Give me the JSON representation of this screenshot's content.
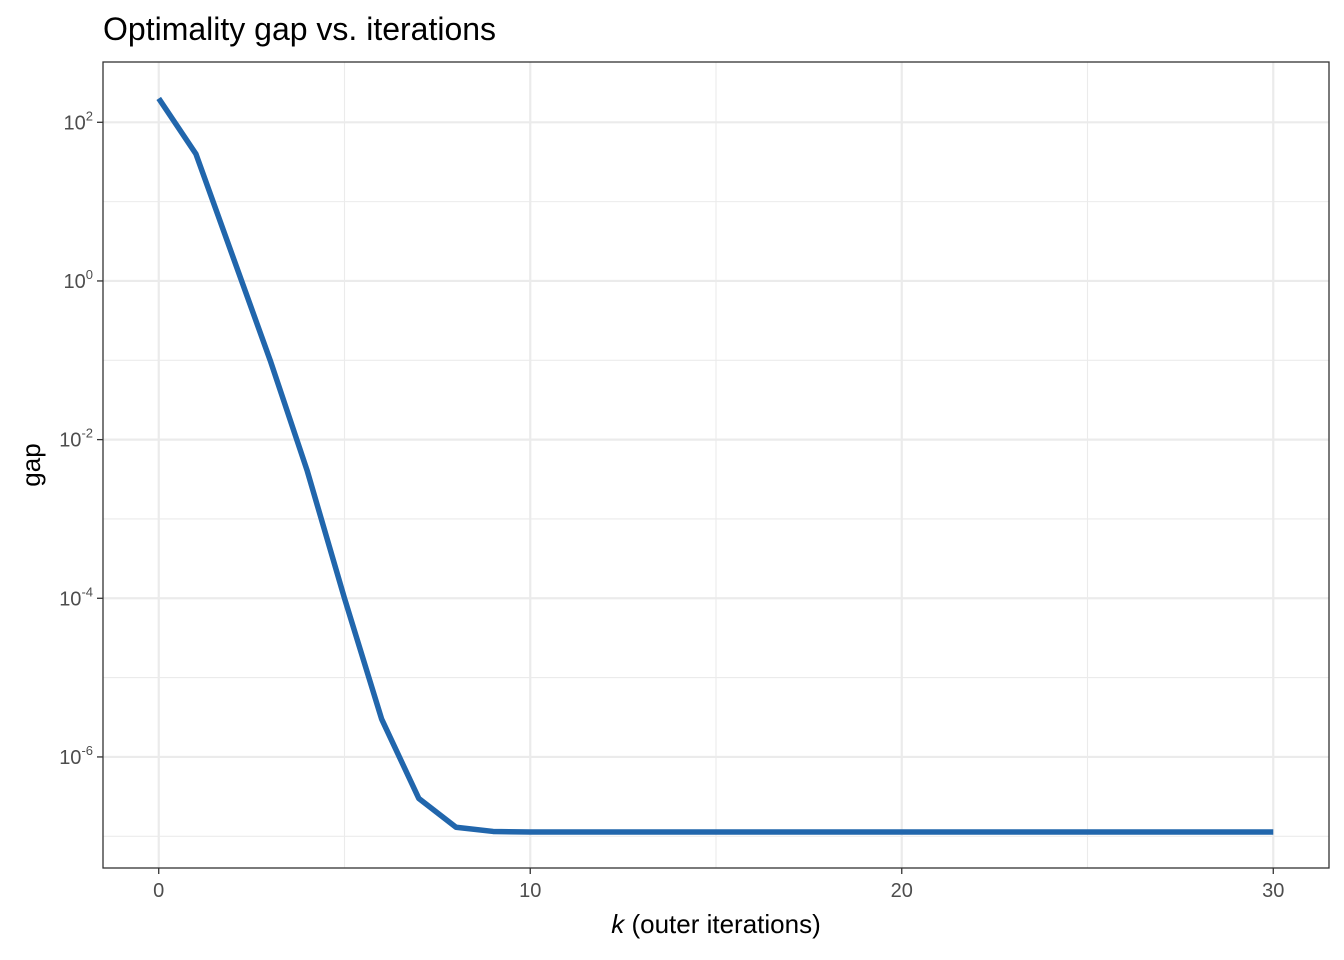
{
  "chart_data": {
    "type": "line",
    "title": "Optimality gap vs. iterations",
    "xlabel_italic": "k",
    "xlabel_rest": " (outer iterations)",
    "ylabel": "gap",
    "y_scale": "log10",
    "xlim": [
      -1.5,
      31.5
    ],
    "ylim_log10": [
      -7.4,
      2.76
    ],
    "x_ticks": [
      0,
      10,
      20,
      30
    ],
    "x_minor_ticks": [
      5,
      15,
      25
    ],
    "y_ticks": [
      {
        "base": "10",
        "exp": "2",
        "value": 100
      },
      {
        "base": "10",
        "exp": "0",
        "value": 1
      },
      {
        "base": "10",
        "exp": "-2",
        "value": 0.01
      },
      {
        "base": "10",
        "exp": "-4",
        "value": 0.0001
      },
      {
        "base": "10",
        "exp": "-6",
        "value": 1e-06
      }
    ],
    "y_minor_ticks": [
      10,
      0.1,
      0.001,
      1e-05,
      1e-07
    ],
    "grid": true,
    "series": [
      {
        "color": "#2166ac",
        "x": [
          0,
          1,
          2,
          3,
          4,
          5,
          6,
          7,
          8,
          9,
          10,
          11,
          12,
          13,
          14,
          15,
          16,
          17,
          18,
          19,
          20,
          21,
          22,
          23,
          24,
          25,
          26,
          27,
          28,
          29,
          30
        ],
        "y": [
          200,
          40,
          2,
          0.1,
          0.004,
          0.0001,
          3e-06,
          3e-07,
          1.3e-07,
          1.15e-07,
          1.13e-07,
          1.13e-07,
          1.13e-07,
          1.13e-07,
          1.13e-07,
          1.13e-07,
          1.13e-07,
          1.13e-07,
          1.13e-07,
          1.13e-07,
          1.13e-07,
          1.13e-07,
          1.13e-07,
          1.13e-07,
          1.13e-07,
          1.13e-07,
          1.13e-07,
          1.13e-07,
          1.13e-07,
          1.13e-07,
          1.13e-07
        ]
      }
    ]
  }
}
